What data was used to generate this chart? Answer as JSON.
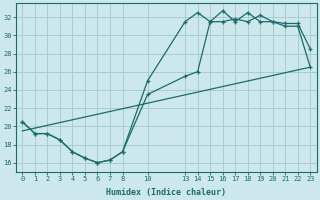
{
  "xlabel": "Humidex (Indice chaleur)",
  "ylabel": "",
  "bg_color": "#cce8ec",
  "grid_color": "#aacccc",
  "line_color": "#1a6b6b",
  "xlim": [
    -0.5,
    23.5
  ],
  "ylim": [
    15,
    33.5
  ],
  "xticks": [
    0,
    1,
    2,
    3,
    4,
    5,
    6,
    7,
    8,
    10,
    13,
    14,
    15,
    16,
    17,
    18,
    19,
    20,
    21,
    22,
    23
  ],
  "yticks": [
    16,
    18,
    20,
    22,
    24,
    26,
    28,
    30,
    32
  ],
  "line1_x": [
    0,
    1,
    2,
    3,
    4,
    5,
    6,
    7,
    8,
    10,
    13,
    14,
    15,
    16,
    17,
    18,
    19,
    20,
    21,
    22,
    23
  ],
  "line1_y": [
    20.5,
    19.2,
    19.2,
    18.5,
    17.2,
    16.5,
    16.0,
    16.3,
    17.2,
    25.0,
    31.5,
    32.5,
    31.5,
    32.7,
    31.5,
    32.5,
    31.5,
    31.5,
    31.3,
    31.3,
    28.5
  ],
  "line2_x": [
    0,
    1,
    2,
    3,
    4,
    5,
    6,
    7,
    8,
    10,
    13,
    14,
    15,
    16,
    17,
    18,
    19,
    20,
    21,
    22,
    23
  ],
  "line2_y": [
    20.5,
    19.2,
    19.2,
    18.5,
    17.2,
    16.5,
    16.0,
    16.3,
    17.2,
    23.5,
    25.5,
    26.0,
    31.5,
    31.5,
    31.8,
    31.5,
    32.2,
    31.5,
    31.0,
    31.0,
    26.5
  ],
  "line3_x": [
    0,
    23
  ],
  "line3_y": [
    19.5,
    26.5
  ]
}
